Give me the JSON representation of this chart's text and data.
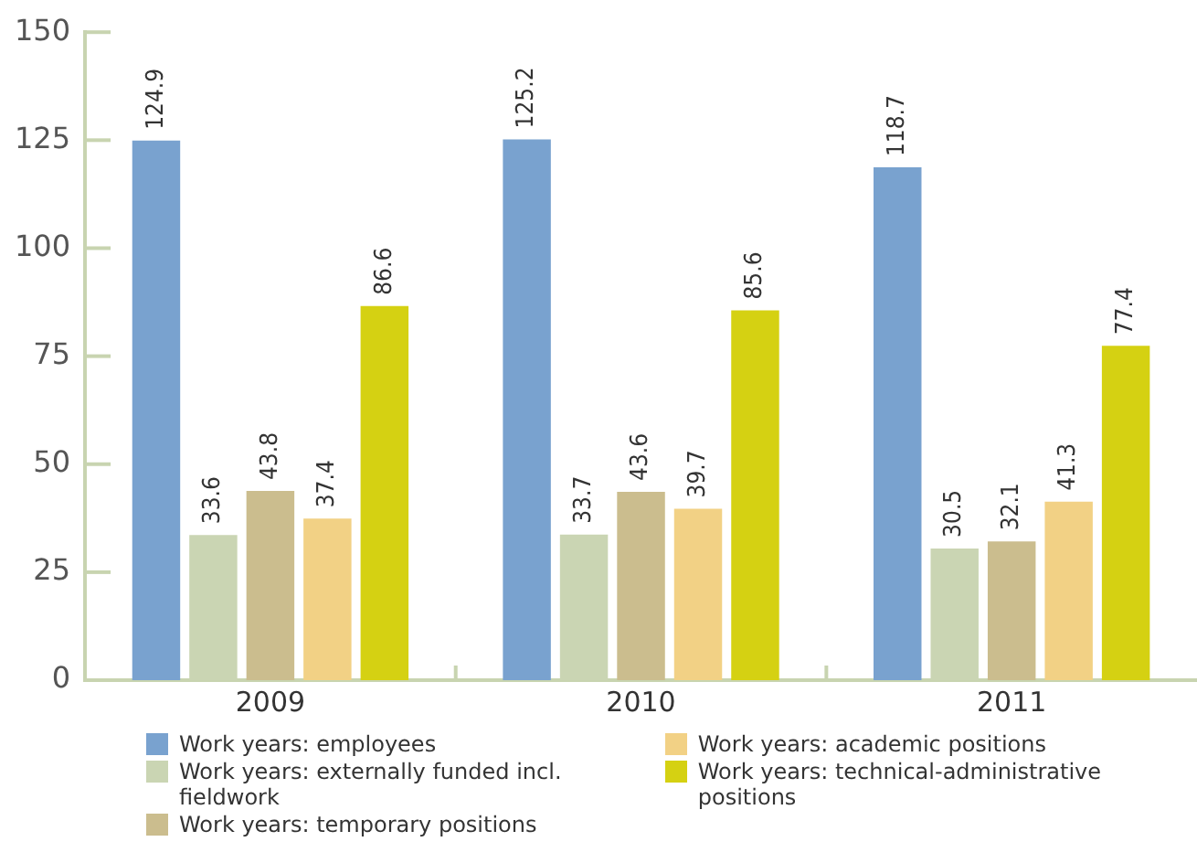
{
  "chart_data": {
    "type": "bar",
    "categories": [
      "2009",
      "2010",
      "2011"
    ],
    "series": [
      {
        "name": "Work years: employees",
        "color": "#79a2cf",
        "values": [
          124.9,
          125.2,
          118.7
        ]
      },
      {
        "name": "Work years: externally funded incl. fieldwork",
        "color": "#cad5b3",
        "values": [
          33.6,
          33.7,
          30.5
        ]
      },
      {
        "name": "Work years: temporary positions",
        "color": "#cbbd8e",
        "values": [
          43.8,
          43.6,
          32.1
        ]
      },
      {
        "name": "Work years: academic positions",
        "color": "#f2d185",
        "values": [
          37.4,
          39.7,
          41.3
        ]
      },
      {
        "name": "Work years: technical-administrative positions",
        "color": "#d5d112",
        "values": [
          86.6,
          85.6,
          77.4
        ]
      }
    ],
    "ylim": [
      0,
      150
    ],
    "yticks": [
      0,
      25,
      50,
      75,
      100,
      125,
      150
    ],
    "grid": false,
    "legend": "bottom",
    "data_labels": true
  }
}
